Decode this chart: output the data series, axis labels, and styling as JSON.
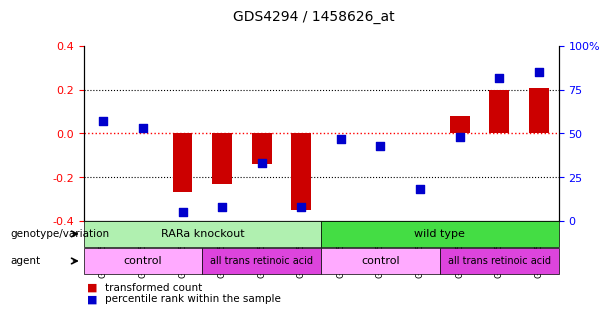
{
  "title": "GDS4294 / 1458626_at",
  "samples": [
    "GSM775291",
    "GSM775295",
    "GSM775299",
    "GSM775292",
    "GSM775296",
    "GSM775300",
    "GSM775293",
    "GSM775297",
    "GSM775301",
    "GSM775294",
    "GSM775298",
    "GSM775302"
  ],
  "bar_values": [
    0.0,
    0.0,
    -0.27,
    -0.23,
    -0.14,
    -0.35,
    0.0,
    0.0,
    0.0,
    0.08,
    0.2,
    0.21
  ],
  "percentile_values": [
    57,
    53,
    5,
    8,
    33,
    8,
    47,
    43,
    18,
    48,
    82,
    85
  ],
  "bar_color": "#cc0000",
  "percentile_color": "#0000cc",
  "ylim_left": [
    -0.4,
    0.4
  ],
  "ylim_right": [
    0,
    100
  ],
  "left_yticks": [
    -0.4,
    -0.2,
    0.0,
    0.2,
    0.4
  ],
  "right_ticks": [
    0,
    25,
    50,
    75,
    100
  ],
  "right_tick_labels": [
    "0",
    "25",
    "50",
    "75",
    "100%"
  ],
  "genotype_groups": [
    {
      "label": "RARa knockout",
      "start": 0,
      "end": 6,
      "color": "#b0f0b0"
    },
    {
      "label": "wild type",
      "start": 6,
      "end": 12,
      "color": "#44dd44"
    }
  ],
  "agent_groups": [
    {
      "label": "control",
      "start": 0,
      "end": 3,
      "color": "#ffaaff"
    },
    {
      "label": "all trans retinoic acid",
      "start": 3,
      "end": 6,
      "color": "#dd44dd"
    },
    {
      "label": "control",
      "start": 6,
      "end": 9,
      "color": "#ffaaff"
    },
    {
      "label": "all trans retinoic acid",
      "start": 9,
      "end": 12,
      "color": "#dd44dd"
    }
  ],
  "genotype_label": "genotype/variation",
  "agent_label": "agent",
  "legend_bar_label": "transformed count",
  "legend_pct_label": "percentile rank within the sample",
  "bar_width": 0.5,
  "pct_marker_size": 36
}
